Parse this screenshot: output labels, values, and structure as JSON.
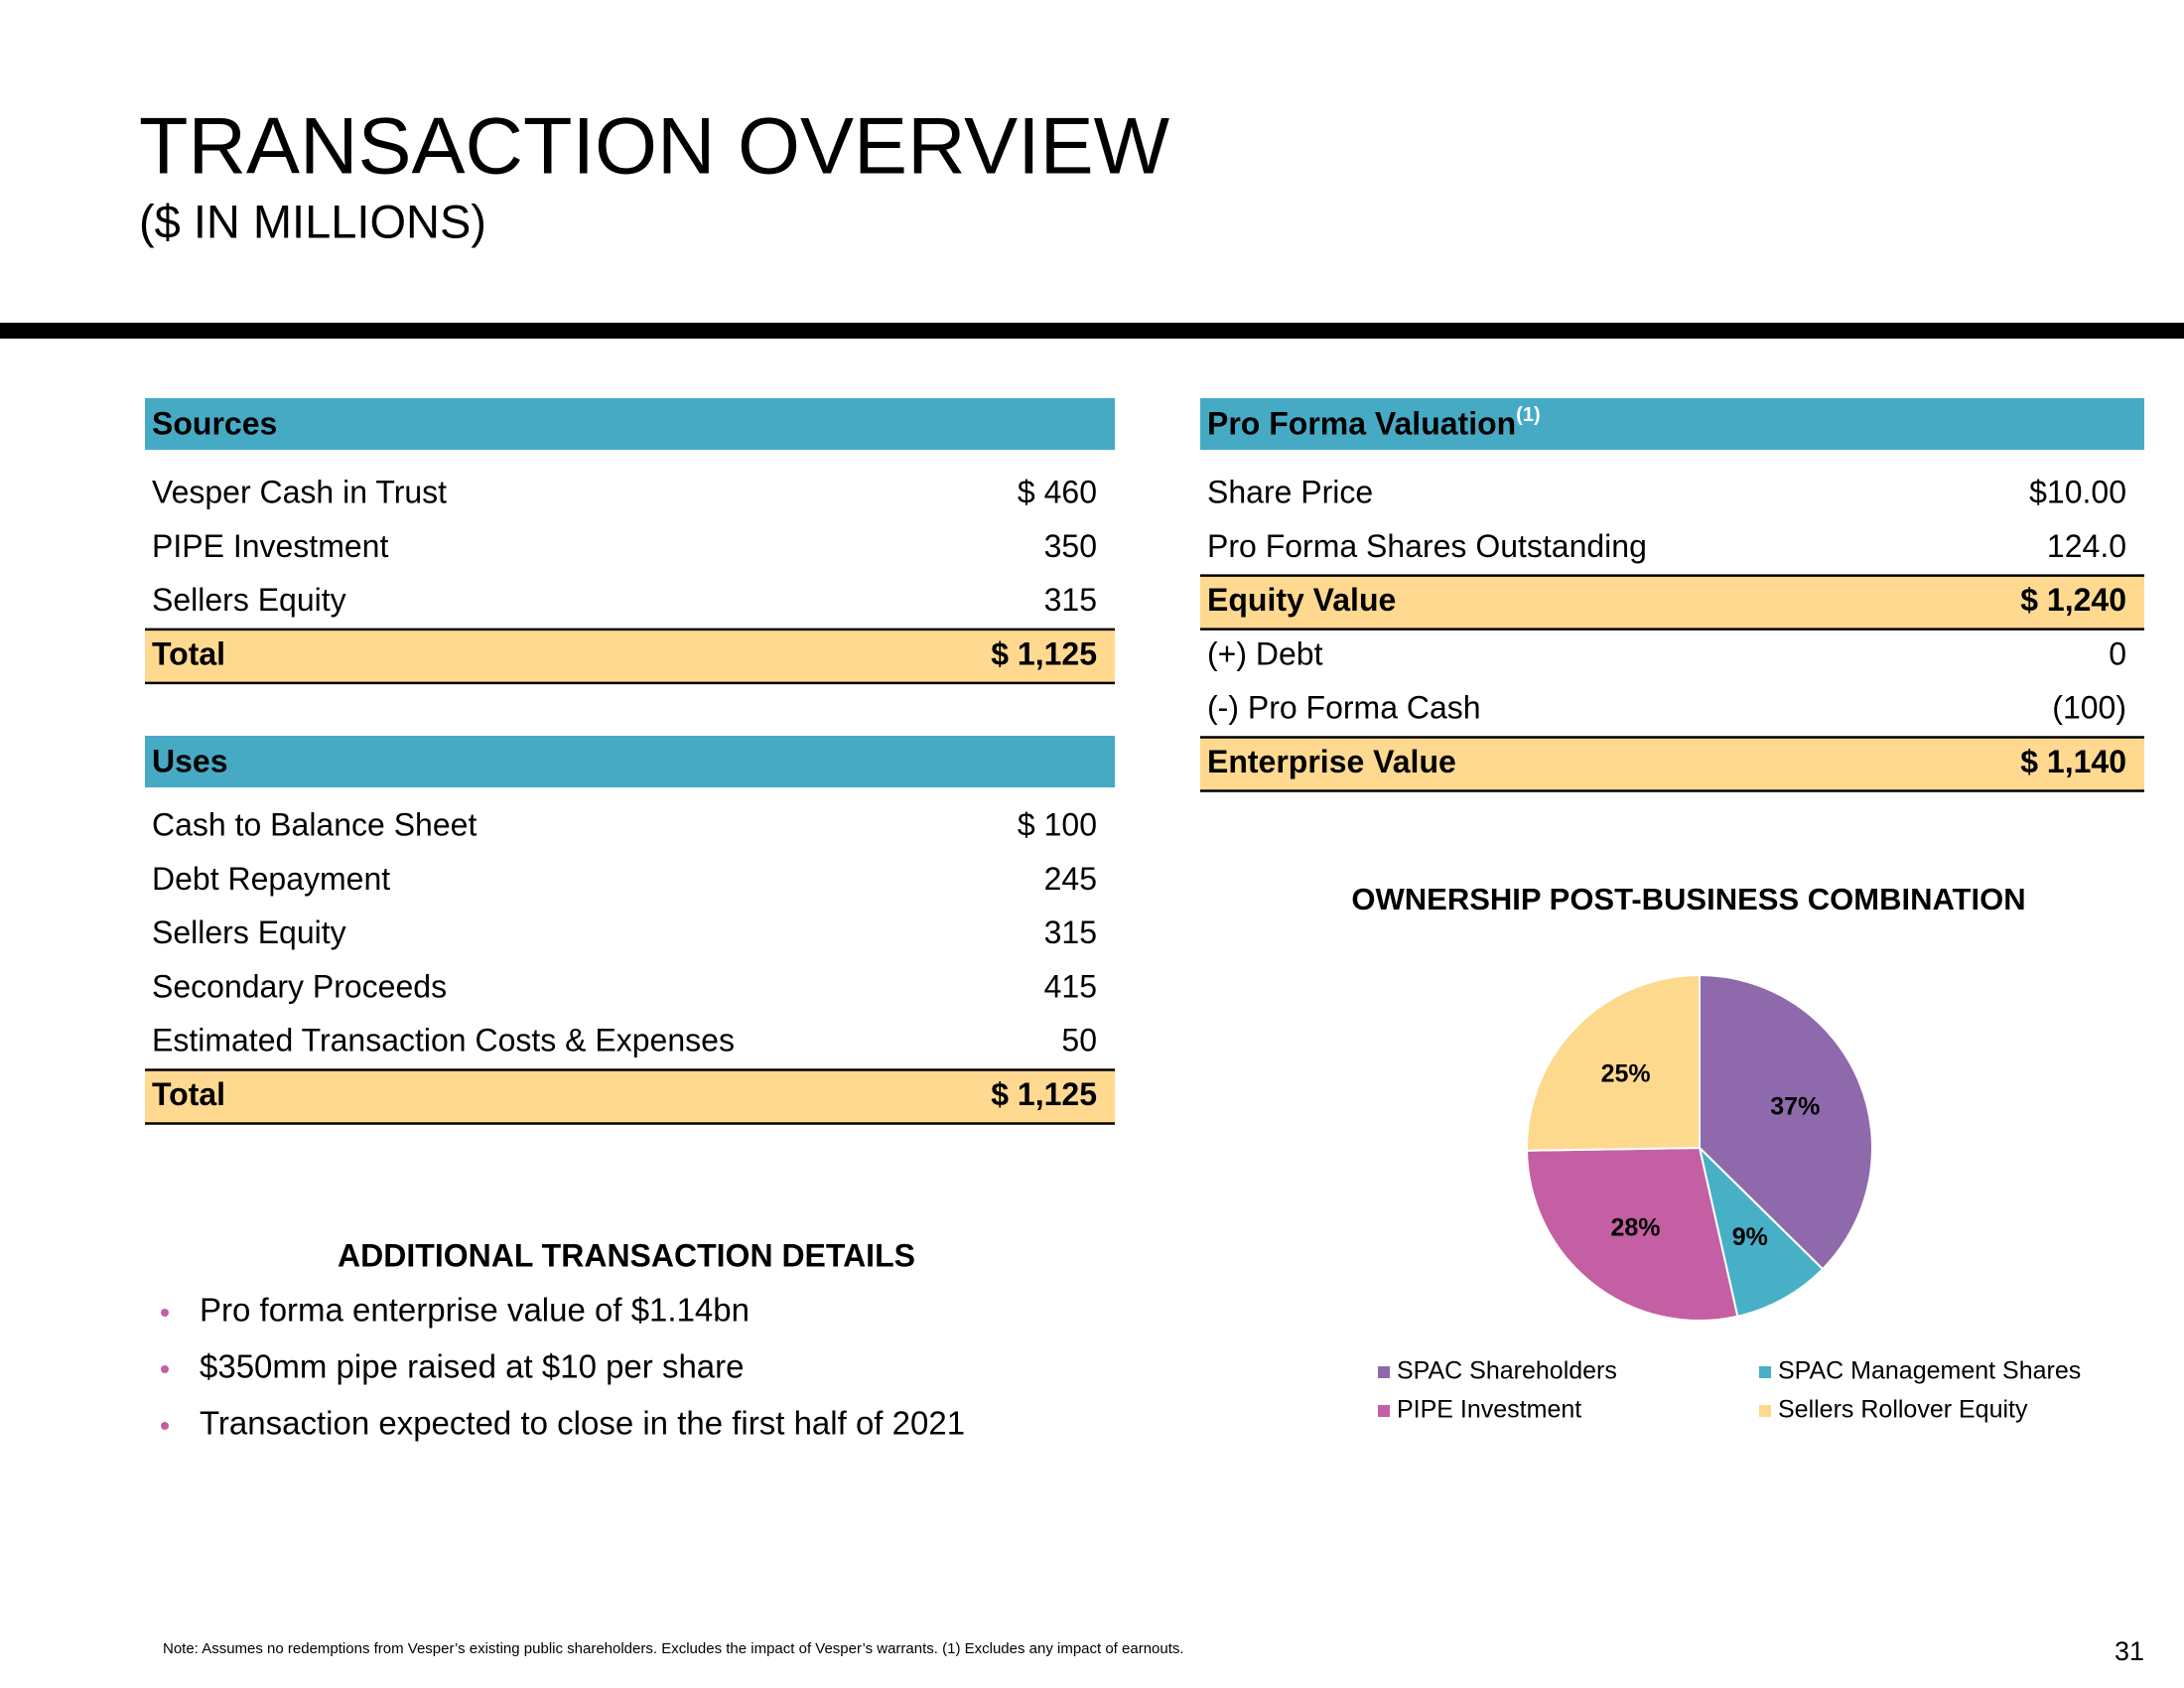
{
  "header": {
    "title": "TRANSACTION OVERVIEW",
    "subtitle": "($ IN MILLIONS)"
  },
  "sources": {
    "title": "Sources",
    "rows": [
      {
        "label": "Vesper Cash in Trust",
        "value": "$ 460"
      },
      {
        "label": "PIPE Investment",
        "value": "350"
      },
      {
        "label": "Sellers Equity",
        "value": "315"
      },
      {
        "label": "Total",
        "value": "$ 1,125",
        "total": true
      }
    ]
  },
  "uses": {
    "title": "Uses",
    "rows": [
      {
        "label": "Cash to Balance Sheet",
        "value": "$ 100"
      },
      {
        "label": "Debt Repayment",
        "value": "245"
      },
      {
        "label": "Sellers Equity",
        "value": "315"
      },
      {
        "label": "Secondary Proceeds",
        "value": "415"
      },
      {
        "label": "Estimated Transaction Costs & Expenses",
        "value": "50"
      },
      {
        "label": "Total",
        "value": "$ 1,125",
        "total": true
      }
    ]
  },
  "valuation": {
    "title": "Pro Forma Valuation",
    "note": "(1)",
    "rows": [
      {
        "label": "Share Price",
        "value": "$10.00"
      },
      {
        "label": "Pro Forma Shares Outstanding",
        "value": "124.0"
      },
      {
        "label": "Equity Value",
        "value": "$ 1,240",
        "total": true
      },
      {
        "label": "(+) Debt",
        "value": "0"
      },
      {
        "label": "(-) Pro Forma Cash",
        "value": "(100)"
      },
      {
        "label": "Enterprise Value",
        "value": "$ 1,140",
        "total": true
      }
    ]
  },
  "details": {
    "title": "ADDITIONAL TRANSACTION DETAILS",
    "bullets": [
      "Pro forma enterprise value of $1.14bn",
      "$350mm pipe raised at $10 per share",
      "Transaction expected to close in the first half of 2021"
    ]
  },
  "chart_data": {
    "type": "pie",
    "title": "OWNERSHIP POST-BUSINESS COMBINATION",
    "categories": [
      "SPAC Shareholders",
      "SPAC Management Shares",
      "PIPE Investment",
      "Sellers Rollover Equity"
    ],
    "values": [
      37,
      9,
      28,
      25
    ],
    "value_labels": [
      "37%",
      "9%",
      "28%",
      "25%"
    ],
    "colors": [
      "#8e6aad",
      "#47afc6",
      "#c45fa4",
      "#fdd98e"
    ]
  },
  "footer": {
    "note": "Note: Assumes no redemptions from Vesper’s existing public shareholders. Excludes the impact of Vesper’s warrants. (1) Excludes any impact of earnouts.",
    "page": "31"
  }
}
